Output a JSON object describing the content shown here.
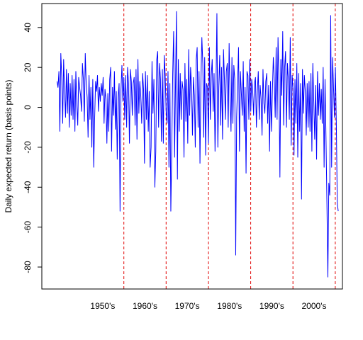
{
  "chart_data": {
    "type": "line",
    "title": "",
    "xlabel": "",
    "ylabel": "Daily expected return (basis points)",
    "ylim": [
      -91,
      52
    ],
    "yticks": [
      40,
      20,
      0,
      -20,
      -40,
      -60,
      -80
    ],
    "ytick_labels": [
      "40",
      "20",
      "0",
      "-20",
      "-40",
      "-60",
      "-80"
    ],
    "xlim": [
      1940.6,
      2011.7
    ],
    "decades": [
      {
        "label": "1950's",
        "center": 1955
      },
      {
        "label": "1960's",
        "center": 1965
      },
      {
        "label": "1970's",
        "center": 1975
      },
      {
        "label": "1980's",
        "center": 1985
      },
      {
        "label": "1990's",
        "center": 1995
      },
      {
        "label": "2000's",
        "center": 2005
      }
    ],
    "decade_boundaries": [
      1960,
      1970,
      1980,
      1990,
      2000,
      2010
    ],
    "series": [
      {
        "color": "#0000ff",
        "x_start": 1944.2,
        "x_end": 2010.7,
        "values": [
          13,
          10,
          18,
          -12,
          27,
          15,
          -8,
          24,
          8,
          -5,
          19,
          -3,
          17,
          -10,
          12,
          -4,
          16,
          -6,
          14,
          -12,
          18,
          2,
          -9,
          15,
          10,
          6,
          -2,
          22,
          14,
          -7,
          27,
          12,
          5,
          -15,
          16,
          -6,
          10,
          -20,
          14,
          -30,
          -5,
          13,
          8,
          16,
          -2,
          10,
          3,
          12,
          6,
          15,
          -8,
          9,
          4,
          -18,
          7,
          -12,
          14,
          20,
          -22,
          10,
          -4,
          18,
          -11,
          8,
          -26,
          5,
          12,
          -52,
          9,
          21,
          3,
          15,
          -6,
          16,
          -10,
          20,
          12,
          -18,
          19,
          13,
          -4,
          12,
          15,
          -9,
          19,
          -16,
          24,
          -3,
          13,
          6,
          -8,
          17,
          9,
          -28,
          18,
          -6,
          16,
          -12,
          8,
          -30,
          -20,
          23,
          -3,
          14,
          -40,
          -22,
          24,
          28,
          -10,
          22,
          14,
          -17,
          19,
          -18,
          26,
          16,
          -2,
          -8,
          18,
          -30,
          12,
          -52,
          -20,
          17,
          38,
          -25,
          12,
          48,
          -36,
          24,
          -12,
          17,
          -6,
          13,
          9,
          -25,
          22,
          -7,
          14,
          -18,
          29,
          -4,
          20,
          11,
          -14,
          15,
          6,
          -20,
          24,
          30,
          -10,
          18,
          -28,
          13,
          35,
          22,
          -15,
          25,
          -24,
          12,
          10,
          -18,
          30,
          -6,
          16,
          24,
          -2,
          17,
          -22,
          9,
          47,
          -20,
          10,
          26,
          -9,
          20,
          -16,
          29,
          14,
          -6,
          18,
          22,
          -10,
          32,
          5,
          -12,
          25,
          -8,
          21,
          14,
          -74,
          -5,
          12,
          30,
          -22,
          18,
          7,
          -4,
          23,
          -12,
          10,
          -33,
          18,
          16,
          -6,
          24,
          -2,
          14,
          9,
          -4,
          12,
          15,
          -10,
          8,
          18,
          -6,
          11,
          4,
          -14,
          19,
          2,
          -3,
          13,
          17,
          -8,
          11,
          -22,
          13,
          -12,
          8,
          25,
          14,
          -5,
          30,
          -6,
          35,
          12,
          -35,
          24,
          6,
          38,
          -9,
          20,
          28,
          -10,
          22,
          14,
          -6,
          35,
          -19,
          16,
          9,
          -24,
          14,
          -8,
          22,
          -25,
          17,
          -12,
          12,
          -46,
          19,
          -3,
          16,
          8,
          -14,
          12,
          -10,
          13,
          -12,
          17,
          -22,
          22,
          3,
          -16,
          11,
          -26,
          18,
          -4,
          12,
          -6,
          9,
          -8,
          20,
          -30,
          14,
          -15,
          -48,
          -85,
          -38,
          -44,
          46,
          -30,
          25,
          10,
          -5,
          20,
          -8,
          -48,
          -52
        ]
      }
    ]
  }
}
